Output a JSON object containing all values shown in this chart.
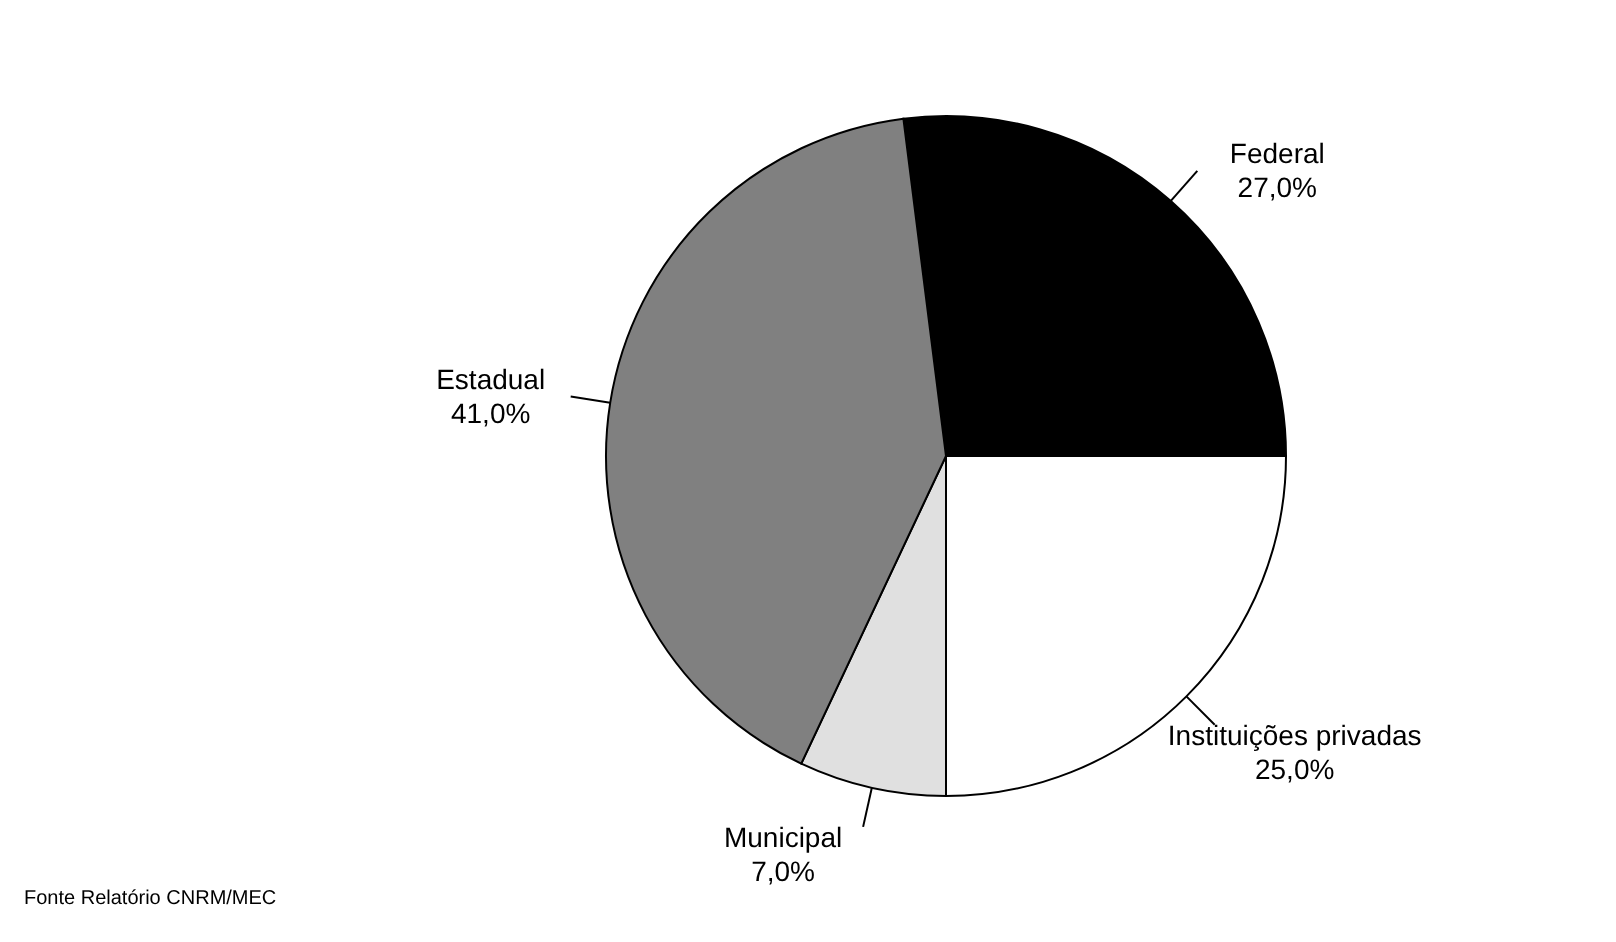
{
  "chart_data": {
    "type": "pie",
    "categories": [
      "Federal",
      "Instituições privadas",
      "Municipal",
      "Estadual"
    ],
    "values": [
      27,
      25,
      7,
      41
    ],
    "colors": [
      "#000000",
      "#ffffff",
      "#e0e0e0",
      "#808080"
    ],
    "value_labels": [
      "27,0%",
      "25,0%",
      "7,0%",
      "41,0%"
    ],
    "annotations": [
      "Fonte Relatório CNRM/MEC"
    ]
  }
}
